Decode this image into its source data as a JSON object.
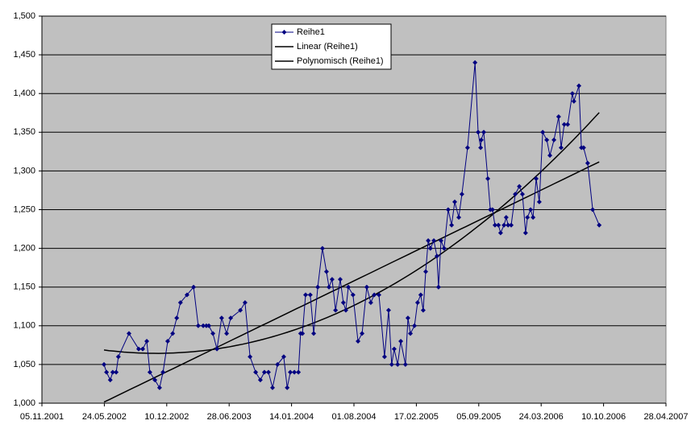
{
  "chart_data": {
    "type": "line",
    "x": [
      "23.05.2002",
      "31.05.2002",
      "12.06.2002",
      "20.06.2002",
      "01.07.2002",
      "08.07.2002",
      "11.08.2002",
      "11.09.2002",
      "24.09.2002",
      "07.10.2002",
      "17.10.2002",
      "02.11.2002",
      "17.11.2002",
      "28.11.2002",
      "13.12.2002",
      "29.12.2002",
      "11.01.2003",
      "23.01.2003",
      "13.02.2003",
      "06.03.2003",
      "21.03.2003",
      "06.04.2003",
      "16.04.2003",
      "24.04.2003",
      "07.05.2003",
      "20.05.2003",
      "04.06.2003",
      "20.06.2003",
      "03.07.2003",
      "03.08.2003",
      "18.08.2003",
      "03.09.2003",
      "21.09.2003",
      "06.10.2003",
      "19.10.2003",
      "01.11.2003",
      "14.11.2003",
      "30.11.2003",
      "20.12.2003",
      "31.12.2003",
      "10.01.2004",
      "23.01.2004",
      "05.02.2004",
      "12.02.2004",
      "18.02.2004",
      "28.02.2004",
      "14.03.2004",
      "25.03.2004",
      "07.04.2004",
      "22.04.2004",
      "05.05.2004",
      "13.05.2004",
      "23.05.2004",
      "03.06.2004",
      "18.06.2004",
      "28.06.2004",
      "06.07.2004",
      "14.07.2004",
      "29.07.2004",
      "14.08.2004",
      "27.08.2004",
      "11.09.2004",
      "24.09.2004",
      "05.10.2004",
      "20.10.2004",
      "07.11.2004",
      "20.11.2004",
      "30.11.2004",
      "08.12.2004",
      "19.12.2004",
      "29.12.2004",
      "13.01.2005",
      "21.01.2005",
      "29.01.2005",
      "11.02.2005",
      "21.02.2005",
      "03.03.2005",
      "11.03.2005",
      "19.03.2005",
      "27.03.2005",
      "03.04.2005",
      "14.04.2005",
      "24.04.2005",
      "29.04.2005",
      "07.05.2005",
      "17.05.2005",
      "30.05.2005",
      "10.06.2005",
      "20.06.2005",
      "03.07.2005",
      "13.07.2005",
      "31.07.2005",
      "24.08.2005",
      "03.09.2005",
      "11.09.2005",
      "13.09.2005",
      "21.09.2005",
      "04.10.2005",
      "12.10.2005",
      "19.10.2005",
      "27.10.2005",
      "07.11.2005",
      "14.11.2005",
      "25.11.2005",
      "02.12.2005",
      "08.12.2005",
      "18.12.2005",
      "31.12.2005",
      "13.01.2006",
      "23.01.2006",
      "02.02.2006",
      "08.02.2006",
      "18.02.2006",
      "26.02.2006",
      "08.03.2006",
      "18.03.2006",
      "29.03.2006",
      "11.04.2006",
      "21.04.2006",
      "04.05.2006",
      "19.05.2006",
      "27.05.2006",
      "06.06.2006",
      "17.06.2006",
      "02.07.2006",
      "07.07.2006",
      "23.07.2006",
      "31.07.2006",
      "07.08.2006",
      "20.08.2006",
      "05.09.2006",
      "26.09.2006"
    ],
    "series": [
      {
        "name": "Reihe1",
        "color": "#000080",
        "values": [
          1.05,
          1.04,
          1.03,
          1.04,
          1.04,
          1.06,
          1.09,
          1.07,
          1.07,
          1.08,
          1.04,
          1.03,
          1.02,
          1.04,
          1.08,
          1.09,
          1.11,
          1.13,
          1.14,
          1.15,
          1.1,
          1.1,
          1.1,
          1.1,
          1.09,
          1.07,
          1.11,
          1.09,
          1.11,
          1.12,
          1.13,
          1.06,
          1.04,
          1.03,
          1.04,
          1.04,
          1.02,
          1.05,
          1.06,
          1.02,
          1.04,
          1.04,
          1.04,
          1.09,
          1.09,
          1.14,
          1.14,
          1.09,
          1.15,
          1.2,
          1.17,
          1.15,
          1.16,
          1.12,
          1.16,
          1.13,
          1.12,
          1.15,
          1.14,
          1.08,
          1.09,
          1.15,
          1.13,
          1.14,
          1.14,
          1.06,
          1.12,
          1.05,
          1.07,
          1.05,
          1.08,
          1.05,
          1.11,
          1.09,
          1.1,
          1.13,
          1.14,
          1.12,
          1.17,
          1.21,
          1.2,
          1.21,
          1.19,
          1.15,
          1.21,
          1.2,
          1.25,
          1.23,
          1.26,
          1.24,
          1.27,
          1.33,
          1.44,
          1.35,
          1.33,
          1.34,
          1.35,
          1.29,
          1.25,
          1.25,
          1.23,
          1.23,
          1.22,
          1.23,
          1.24,
          1.23,
          1.23,
          1.27,
          1.28,
          1.27,
          1.22,
          1.24,
          1.25,
          1.24,
          1.29,
          1.26,
          1.35,
          1.34,
          1.32,
          1.34,
          1.37,
          1.33,
          1.36,
          1.36,
          1.4,
          1.39,
          1.41,
          1.33,
          1.33,
          1.31,
          1.25,
          1.23
        ]
      }
    ],
    "trendlines": [
      {
        "name": "Linear (Reihe1)",
        "kind": "linear",
        "color": "#000000"
      },
      {
        "name": "Polynomisch (Reihe1)",
        "kind": "polynomial",
        "order": 2,
        "color": "#000000"
      }
    ],
    "xlim": [
      "05.11.2001",
      "28.04.2007"
    ],
    "xticks": [
      "05.11.2001",
      "24.05.2002",
      "10.12.2002",
      "28.06.2003",
      "14.01.2004",
      "01.08.2004",
      "17.02.2005",
      "05.09.2005",
      "24.03.2006",
      "10.10.2006",
      "28.04.2007"
    ],
    "ylim": [
      1.0,
      1.5
    ],
    "yticks": [
      {
        "value": 1.0,
        "label": "1,000"
      },
      {
        "value": 1.05,
        "label": "1,050"
      },
      {
        "value": 1.1,
        "label": "1,100"
      },
      {
        "value": 1.15,
        "label": "1,150"
      },
      {
        "value": 1.2,
        "label": "1,200"
      },
      {
        "value": 1.25,
        "label": "1,250"
      },
      {
        "value": 1.3,
        "label": "1,300"
      },
      {
        "value": 1.35,
        "label": "1,350"
      },
      {
        "value": 1.4,
        "label": "1,400"
      },
      {
        "value": 1.45,
        "label": "1,450"
      },
      {
        "value": 1.5,
        "label": "1,500"
      }
    ],
    "grid": true,
    "plot_background": "#c0c0c0"
  }
}
